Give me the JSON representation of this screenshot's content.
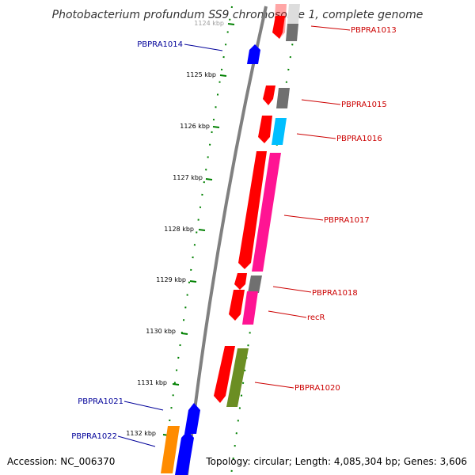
{
  "title": "Photobacterium profundum SS9 chromosome 1, complete genome",
  "footer": {
    "accession": "Accession: NC_006370",
    "topology": "Topology: circular; Length: 4,085,304 bp; Genes: 3,606"
  },
  "colors": {
    "backbone": "#808080",
    "ticks": "#008000",
    "label_reverse": "#cc0000",
    "label_forward": "#000099",
    "red": "#ff0000",
    "gray": "#707070",
    "cyan": "#00bfff",
    "pink": "#ff1493",
    "olive": "#6b8e23",
    "blue": "#0000ff",
    "orange": "#ff8c00"
  },
  "ticks": [
    "1124 kbp",
    "1125 kbp",
    "1126 kbp",
    "1127 kbp",
    "1128 kbp",
    "1129 kbp",
    "1130 kbp",
    "1131 kbp",
    "1132 kbp"
  ],
  "gene_labels": [
    {
      "id": "PBPRA1013",
      "text": "PBPRA1013",
      "strand": "reverse"
    },
    {
      "id": "PBPRA1014",
      "text": "PBPRA1014",
      "strand": "forward"
    },
    {
      "id": "PBPRA1015",
      "text": "PBPRA1015",
      "strand": "reverse"
    },
    {
      "id": "PBPRA1016",
      "text": "PBPRA1016",
      "strand": "reverse"
    },
    {
      "id": "PBPRA1017",
      "text": "PBPRA1017",
      "strand": "reverse"
    },
    {
      "id": "PBPRA1018",
      "text": "PBPRA1018",
      "strand": "reverse"
    },
    {
      "id": "recR",
      "text": "recR",
      "strand": "reverse"
    },
    {
      "id": "PBPRA1020",
      "text": "PBPRA1020",
      "strand": "reverse"
    },
    {
      "id": "PBPRA1021",
      "text": "PBPRA1021",
      "strand": "forward"
    },
    {
      "id": "PBPRA1022",
      "text": "PBPRA1022",
      "strand": "forward"
    }
  ]
}
